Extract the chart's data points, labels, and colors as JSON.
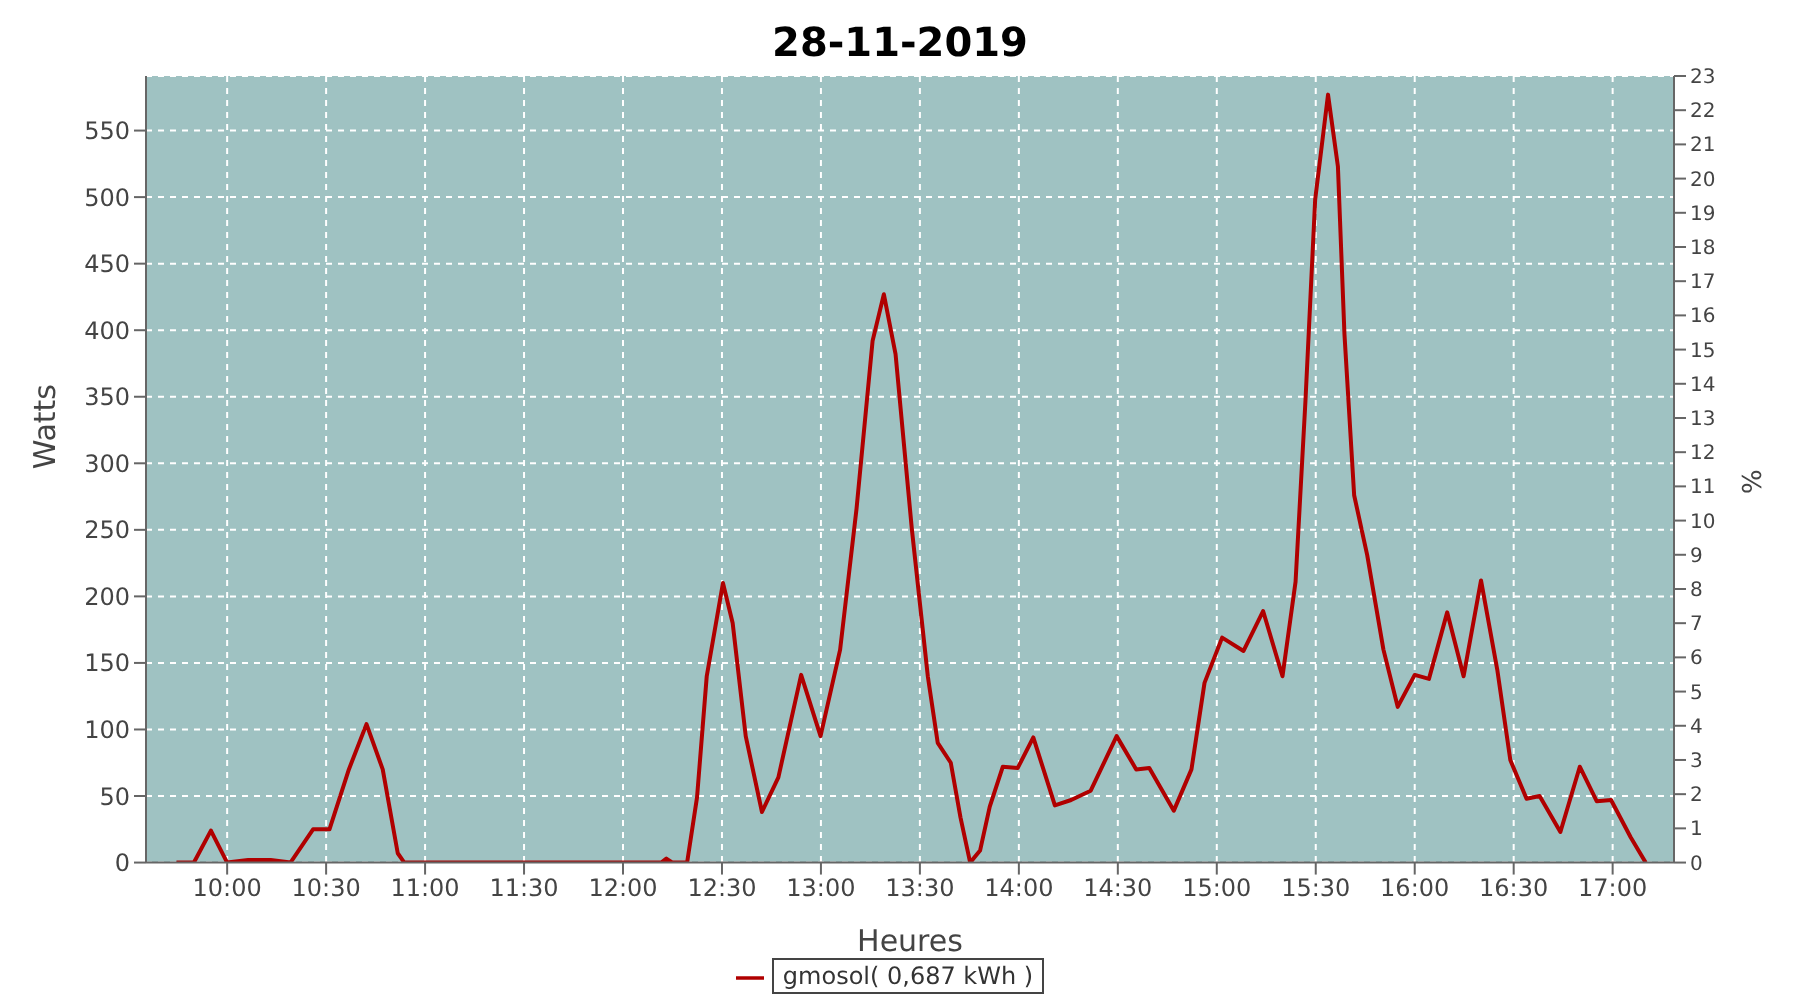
{
  "chart_data": {
    "type": "line",
    "title": "28-11-2019",
    "xlabel": "Heures",
    "ylabel": "Watts",
    "y2label": "%",
    "x": [
      9.744,
      9.832,
      9.918,
      10.0,
      10.106,
      10.22,
      10.32,
      10.434,
      10.517,
      10.615,
      10.704,
      10.786,
      10.862,
      10.895,
      12.193,
      12.219,
      12.25,
      12.324,
      12.374,
      12.423,
      12.505,
      12.554,
      12.62,
      12.702,
      12.785,
      12.9,
      12.998,
      13.097,
      13.18,
      13.261,
      13.318,
      13.377,
      13.459,
      13.54,
      13.59,
      13.656,
      13.705,
      13.754,
      13.804,
      13.853,
      13.919,
      13.994,
      14.073,
      14.182,
      14.264,
      14.363,
      14.494,
      14.593,
      14.659,
      14.783,
      14.872,
      14.938,
      15.027,
      15.135,
      15.234,
      15.332,
      15.398,
      15.448,
      15.497,
      15.562,
      15.612,
      15.645,
      15.694,
      15.76,
      15.842,
      15.914,
      16.0,
      16.072,
      16.164,
      16.247,
      16.335,
      16.417,
      16.483,
      16.565,
      16.631,
      16.736,
      16.834,
      16.92,
      16.992,
      17.091,
      17.167
    ],
    "series": [
      {
        "name": "gmosol( 0,687 kWh )",
        "color": "#b00000",
        "values": [
          0,
          0,
          24,
          0,
          2,
          2,
          0,
          25,
          25,
          70,
          104,
          70,
          7,
          0,
          0,
          3,
          0,
          0,
          49,
          140,
          210,
          180,
          95,
          38,
          64,
          141,
          95,
          160,
          266,
          392,
          427,
          382,
          251,
          140,
          90,
          75,
          34,
          0,
          9,
          42,
          72,
          71,
          94,
          43,
          47,
          54,
          95,
          70,
          71,
          39,
          70,
          135,
          169,
          159,
          189,
          140,
          211,
          347,
          498,
          577,
          523,
          397,
          276,
          231,
          160,
          117,
          141,
          138,
          188,
          140,
          212,
          145,
          77,
          48,
          50,
          23,
          72,
          46,
          47,
          19,
          0
        ]
      }
    ],
    "xlim": [
      9.59,
      17.31
    ],
    "xticks": [
      {
        "value": 10,
        "label": "10:00"
      },
      {
        "value": 10.5,
        "label": "10:30"
      },
      {
        "value": 11,
        "label": "11:00"
      },
      {
        "value": 11.5,
        "label": "11:30"
      },
      {
        "value": 12,
        "label": "12:00"
      },
      {
        "value": 12.5,
        "label": "12:30"
      },
      {
        "value": 13,
        "label": "13:00"
      },
      {
        "value": 13.5,
        "label": "13:30"
      },
      {
        "value": 14,
        "label": "14:00"
      },
      {
        "value": 14.5,
        "label": "14:30"
      },
      {
        "value": 15,
        "label": "15:00"
      },
      {
        "value": 15.5,
        "label": "15:30"
      },
      {
        "value": 16,
        "label": "16:00"
      },
      {
        "value": 16.5,
        "label": "16:30"
      },
      {
        "value": 17,
        "label": "17:00"
      }
    ],
    "ylim": [
      0,
      591
    ],
    "yticks": [
      0,
      50,
      100,
      150,
      200,
      250,
      300,
      350,
      400,
      450,
      500,
      550
    ],
    "y2lim": [
      0,
      23
    ],
    "y2ticks": [
      0,
      1,
      2,
      3,
      4,
      5,
      6,
      7,
      8,
      9,
      10,
      11,
      12,
      13,
      14,
      15,
      16,
      17,
      18,
      19,
      20,
      21,
      22,
      23
    ],
    "grid": true,
    "legend": "bottom",
    "marker": "none",
    "line_style": "solid"
  }
}
